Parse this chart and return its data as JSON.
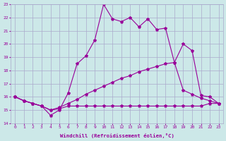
{
  "xlabel": "Windchill (Refroidissement éolien,°C)",
  "bg_color": "#cce8e8",
  "grid_color": "#aaaacc",
  "line_color": "#990099",
  "line1_x": [
    0,
    1,
    2,
    3,
    4,
    5,
    6,
    7,
    8,
    9,
    10,
    11,
    12,
    13,
    14,
    15,
    16,
    17,
    18,
    19,
    20,
    21,
    22,
    23
  ],
  "line1_y": [
    16.0,
    15.7,
    15.5,
    15.3,
    14.6,
    15.0,
    16.3,
    18.5,
    19.1,
    20.3,
    23.0,
    21.9,
    21.7,
    22.0,
    21.3,
    21.9,
    21.1,
    21.2,
    18.6,
    20.0,
    19.5,
    16.1,
    16.0,
    15.5
  ],
  "line2_x": [
    0,
    1,
    2,
    3,
    4,
    5,
    6,
    7,
    8,
    9,
    10,
    11,
    12,
    13,
    14,
    15,
    16,
    17,
    18,
    19,
    20,
    21,
    22,
    23
  ],
  "line2_y": [
    16.0,
    15.7,
    15.5,
    15.3,
    15.0,
    15.2,
    15.5,
    15.8,
    16.2,
    16.5,
    16.8,
    17.1,
    17.4,
    17.6,
    17.9,
    18.1,
    18.3,
    18.5,
    18.6,
    16.5,
    16.2,
    15.9,
    15.7,
    15.5
  ],
  "line3_x": [
    0,
    1,
    2,
    3,
    4,
    5,
    6,
    7,
    8,
    9,
    10,
    11,
    12,
    13,
    14,
    15,
    16,
    17,
    18,
    19,
    20,
    21,
    22,
    23
  ],
  "line3_y": [
    16.0,
    15.7,
    15.5,
    15.3,
    15.0,
    15.1,
    15.3,
    15.3,
    15.3,
    15.3,
    15.3,
    15.3,
    15.3,
    15.3,
    15.3,
    15.3,
    15.3,
    15.3,
    15.3,
    15.3,
    15.3,
    15.3,
    15.5,
    15.5
  ],
  "xlim": [
    -0.5,
    23.5
  ],
  "ylim": [
    14,
    23
  ],
  "yticks": [
    14,
    15,
    16,
    17,
    18,
    19,
    20,
    21,
    22,
    23
  ],
  "xticks": [
    0,
    1,
    2,
    3,
    4,
    5,
    6,
    7,
    8,
    9,
    10,
    11,
    12,
    13,
    14,
    15,
    16,
    17,
    18,
    19,
    20,
    21,
    22,
    23
  ]
}
